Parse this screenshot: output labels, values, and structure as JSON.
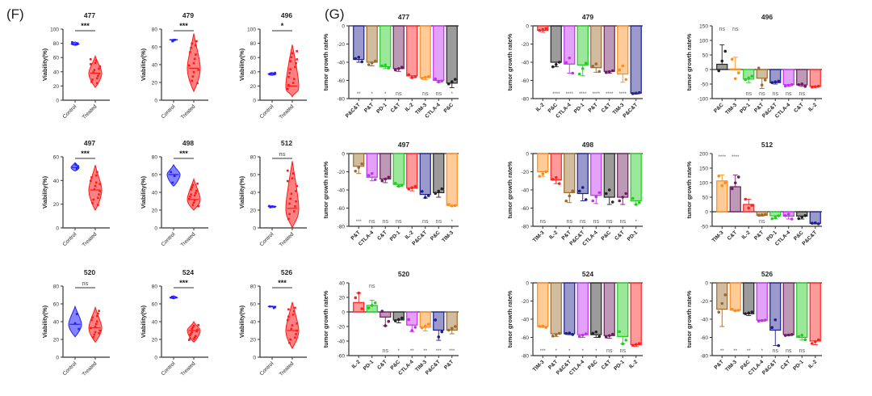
{
  "panels": {
    "F": {
      "label": "(F)"
    },
    "G": {
      "label": "(G)"
    }
  },
  "colors": {
    "control": "#1f1fff",
    "treated": "#ff1a1a",
    "axis": "#333333",
    "sig_text": "#555555",
    "treatments": {
      "P&C&T": "#1c1c8c",
      "P&T": "#9c6a2c",
      "PD-1": "#22cc22",
      "C&T": "#6b1c5c",
      "IL-2": "#ff2020",
      "TIM-3": "#ff8c1a",
      "CTLA-4": "#c030f0",
      "P&C": "#222222"
    }
  },
  "chart_data": [
    {
      "panel": "F",
      "type": "violin",
      "title": "477",
      "ylabel": "Viability(%)",
      "categories": [
        "Control",
        "Treated"
      ],
      "ylim": [
        0,
        100
      ],
      "yticks": [
        0,
        20,
        40,
        60,
        80,
        100
      ],
      "significance": "***",
      "series": [
        {
          "name": "Control",
          "median": 79,
          "min": 77,
          "max": 82
        },
        {
          "name": "Treated",
          "median": 38,
          "min": 18,
          "max": 62
        }
      ]
    },
    {
      "panel": "F",
      "type": "violin",
      "title": "479",
      "ylabel": "Viability(%)",
      "categories": [
        "Control",
        "Treated"
      ],
      "ylim": [
        0,
        80
      ],
      "yticks": [
        0,
        20,
        40,
        60,
        80
      ],
      "significance": "***",
      "series": [
        {
          "name": "Control",
          "median": 68,
          "min": 67.5,
          "max": 68.5
        },
        {
          "name": "Treated",
          "median": 36,
          "min": 10,
          "max": 75
        }
      ]
    },
    {
      "panel": "F",
      "type": "violin",
      "title": "496",
      "ylabel": "Viability(%)",
      "categories": [
        "Control",
        "Treated"
      ],
      "ylim": [
        0,
        100
      ],
      "yticks": [
        0,
        20,
        40,
        60,
        80,
        100
      ],
      "significance": "*",
      "series": [
        {
          "name": "Control",
          "median": 37,
          "min": 35,
          "max": 39
        },
        {
          "name": "Treated",
          "median": 20,
          "min": 5,
          "max": 78
        }
      ]
    },
    {
      "panel": "F",
      "type": "violin",
      "title": "497",
      "ylabel": "Viability(%)",
      "categories": [
        "Control",
        "Treated"
      ],
      "ylim": [
        0,
        60
      ],
      "yticks": [
        0,
        20,
        40,
        60
      ],
      "significance": "***",
      "series": [
        {
          "name": "Control",
          "median": 51,
          "min": 48,
          "max": 55
        },
        {
          "name": "Treated",
          "median": 32,
          "min": 15,
          "max": 53
        }
      ]
    },
    {
      "panel": "F",
      "type": "violin",
      "title": "498",
      "ylabel": "Viability(%)",
      "categories": [
        "Control",
        "Treated"
      ],
      "ylim": [
        0,
        80
      ],
      "yticks": [
        0,
        20,
        40,
        60,
        80
      ],
      "significance": "***",
      "series": [
        {
          "name": "Control",
          "median": 60,
          "min": 47,
          "max": 71
        },
        {
          "name": "Treated",
          "median": 32,
          "min": 20,
          "max": 55
        }
      ]
    },
    {
      "panel": "F",
      "type": "violin",
      "title": "512",
      "ylabel": "Viability(%)",
      "categories": [
        "Control",
        "Treated"
      ],
      "ylim": [
        0,
        80
      ],
      "yticks": [
        0,
        20,
        40,
        60,
        80
      ],
      "significance": "ns",
      "series": [
        {
          "name": "Control",
          "median": 24,
          "min": 23,
          "max": 25
        },
        {
          "name": "Treated",
          "median": 22,
          "min": 0,
          "max": 75
        }
      ]
    },
    {
      "panel": "F",
      "type": "violin",
      "title": "520",
      "ylabel": "Viability(%)",
      "categories": [
        "Control",
        "Treated"
      ],
      "ylim": [
        0,
        80
      ],
      "yticks": [
        0,
        20,
        40,
        60,
        80
      ],
      "significance": "ns",
      "series": [
        {
          "name": "Control",
          "median": 37,
          "min": 23,
          "max": 57
        },
        {
          "name": "Treated",
          "median": 33,
          "min": 17,
          "max": 56
        }
      ]
    },
    {
      "panel": "F",
      "type": "violin",
      "title": "524",
      "ylabel": "Viability(%)",
      "categories": [
        "Control",
        "Treated"
      ],
      "ylim": [
        0,
        80
      ],
      "yticks": [
        0,
        20,
        40,
        60,
        80
      ],
      "significance": "***",
      "series": [
        {
          "name": "Control",
          "median": 67,
          "min": 66,
          "max": 69
        },
        {
          "name": "Treated",
          "median": 30,
          "min": 17,
          "max": 40
        }
      ]
    },
    {
      "panel": "F",
      "type": "violin",
      "title": "526",
      "ylabel": "Viability(%)",
      "categories": [
        "Control",
        "Treated"
      ],
      "ylim": [
        0,
        80
      ],
      "yticks": [
        0,
        20,
        40,
        60,
        80
      ],
      "significance": "***",
      "series": [
        {
          "name": "Control",
          "median": 57,
          "min": 56.5,
          "max": 57.5
        },
        {
          "name": "Treated",
          "median": 30,
          "min": 10,
          "max": 62
        }
      ]
    },
    {
      "panel": "G",
      "type": "bar",
      "title": "477",
      "ylabel": "tumor growth rate%",
      "ylim": [
        -80,
        0
      ],
      "yticks": [
        -80,
        -60,
        -40,
        -20,
        0
      ],
      "categories": [
        "P&C&T",
        "P&T",
        "PD-1",
        "C&T",
        "IL-2",
        "TIM-3",
        "CTLA-4",
        "P&C"
      ],
      "values": [
        -37,
        -40,
        -45,
        -47,
        -55,
        -57,
        -60,
        -63
      ],
      "errors": [
        3,
        4,
        2,
        3,
        2,
        2,
        2,
        5
      ],
      "significance": [
        "**",
        "*",
        "*",
        "ns",
        "",
        "ns",
        "ns",
        "*"
      ]
    },
    {
      "panel": "G",
      "type": "bar",
      "title": "479",
      "ylabel": "tumor growth rate%",
      "ylim": [
        -80,
        0
      ],
      "yticks": [
        -80,
        -60,
        -40,
        -20,
        0
      ],
      "categories": [
        "IL-2",
        "P&C",
        "CTLA-4",
        "PD-1",
        "P&T",
        "C&T",
        "TIM-3",
        "P&C&T"
      ],
      "values": [
        -5,
        -40,
        -42,
        -43,
        -46,
        -50,
        -53,
        -74
      ],
      "errors": [
        2,
        5,
        10,
        12,
        5,
        2,
        9,
        1
      ],
      "significance": [
        "",
        "****",
        "****",
        "****",
        "****",
        "****",
        "****",
        "****"
      ]
    },
    {
      "panel": "G",
      "type": "bar",
      "title": "496",
      "ylabel": "tumor growth rate%",
      "ylim": [
        -100,
        150
      ],
      "yticks": [
        -100,
        -50,
        0,
        50,
        100,
        150
      ],
      "categories": [
        "P&C",
        "TIM-3",
        "PD-1",
        "P&T",
        "P&C&T",
        "CTLA-4",
        "C&T",
        "IL-2"
      ],
      "values": [
        18,
        2,
        -33,
        -30,
        -45,
        -52,
        -53,
        -58
      ],
      "errors": [
        67,
        40,
        12,
        35,
        5,
        5,
        5,
        3
      ],
      "significance": [
        "ns",
        "ns",
        "ns",
        "ns",
        "ns",
        "ns",
        "ns",
        ""
      ]
    },
    {
      "panel": "G",
      "type": "bar",
      "title": "497",
      "ylabel": "tumor growth rate%",
      "ylim": [
        -80,
        0
      ],
      "yticks": [
        -80,
        -60,
        -40,
        -20,
        0
      ],
      "categories": [
        "P&T",
        "CTLA-4",
        "C&T",
        "PD-1",
        "IL-2",
        "P&C&T",
        "P&C",
        "TIM-3"
      ],
      "values": [
        -14,
        -26,
        -28,
        -34,
        -38,
        -45,
        -43,
        -57
      ],
      "errors": [
        8,
        4,
        4,
        2,
        3,
        4,
        5,
        1
      ],
      "significance": [
        "***",
        "ns",
        "ns",
        "ns",
        "",
        "ns",
        "ns",
        "*"
      ]
    },
    {
      "panel": "G",
      "type": "bar",
      "title": "498",
      "ylabel": "tumor growth rate%",
      "ylim": [
        -80,
        0
      ],
      "yticks": [
        -80,
        -60,
        -40,
        -20,
        0
      ],
      "categories": [
        "TIM-3",
        "IL-2",
        "P&T",
        "P&C&T",
        "CTLA-4",
        "P&C",
        "C&T",
        "PD-1"
      ],
      "values": [
        -20,
        -29,
        -43,
        -44,
        -46,
        -48,
        -48,
        -52
      ],
      "errors": [
        5,
        4,
        11,
        8,
        9,
        8,
        8,
        4
      ],
      "significance": [
        "ns",
        "",
        "ns",
        "ns",
        "ns",
        "ns",
        "ns",
        "*"
      ]
    },
    {
      "panel": "G",
      "type": "bar",
      "title": "512",
      "ylabel": "tumor growth rate%",
      "ylim": [
        -50,
        200
      ],
      "yticks": [
        -50,
        0,
        50,
        100,
        150,
        200
      ],
      "categories": [
        "TIM-3",
        "C&T",
        "IL-2",
        "P&T",
        "PD-1",
        "CTLA-4",
        "P&C",
        "P&C&T"
      ],
      "values": [
        106,
        86,
        25,
        -12,
        -14,
        -15,
        -15,
        -40
      ],
      "errors": [
        20,
        40,
        18,
        3,
        10,
        10,
        10,
        2
      ],
      "significance": [
        "****",
        "****",
        "",
        "ns",
        "",
        "",
        "",
        ""
      ]
    },
    {
      "panel": "G",
      "type": "bar",
      "title": "520",
      "ylabel": "tumor growth rate%",
      "ylim": [
        -60,
        40
      ],
      "yticks": [
        -60,
        -40,
        -20,
        0,
        20,
        40
      ],
      "categories": [
        "IL-2",
        "PD-1",
        "C&T",
        "P&C",
        "CTLA-4",
        "TIM-3",
        "P&C&T",
        "P&T"
      ],
      "values": [
        13,
        9,
        -7,
        -11,
        -18,
        -21,
        -25,
        -25
      ],
      "errors": [
        13,
        7,
        12,
        4,
        9,
        5,
        14,
        5
      ],
      "significance": [
        "",
        "ns",
        "ns",
        "*",
        "**",
        "**",
        "***",
        "***"
      ]
    },
    {
      "panel": "G",
      "type": "bar",
      "title": "524",
      "ylabel": "tumor growth rate%",
      "ylim": [
        -80,
        0
      ],
      "yticks": [
        -80,
        -60,
        -40,
        -20,
        0
      ],
      "categories": [
        "TIM-3",
        "P&T",
        "P&C&T",
        "CTLA-4",
        "P&C",
        "C&T",
        "PD-1",
        "IL-2"
      ],
      "values": [
        -48,
        -56,
        -56,
        -57,
        -57,
        -58,
        -59,
        -68
      ],
      "errors": [
        1,
        3,
        1,
        3,
        3,
        3,
        8,
        2
      ],
      "significance": [
        "***",
        "*",
        "*",
        "*",
        "*",
        "ns",
        "ns",
        ""
      ]
    },
    {
      "panel": "G",
      "type": "bar",
      "title": "526",
      "ylabel": "tumor growth rate%",
      "ylim": [
        -80,
        0
      ],
      "yticks": [
        -80,
        -60,
        -40,
        -20,
        0
      ],
      "categories": [
        "P&T",
        "TIM-3",
        "P&C",
        "CTLA-4",
        "P&C&T",
        "C&T",
        "PD-1",
        "IL-2"
      ],
      "values": [
        -29,
        -30,
        -34,
        -41,
        -52,
        -57,
        -60,
        -64
      ],
      "errors": [
        19,
        1,
        2,
        1,
        17,
        1,
        3,
        4
      ],
      "significance": [
        "**",
        "**",
        "**",
        "*",
        "ns",
        "ns",
        "ns",
        ""
      ]
    }
  ]
}
